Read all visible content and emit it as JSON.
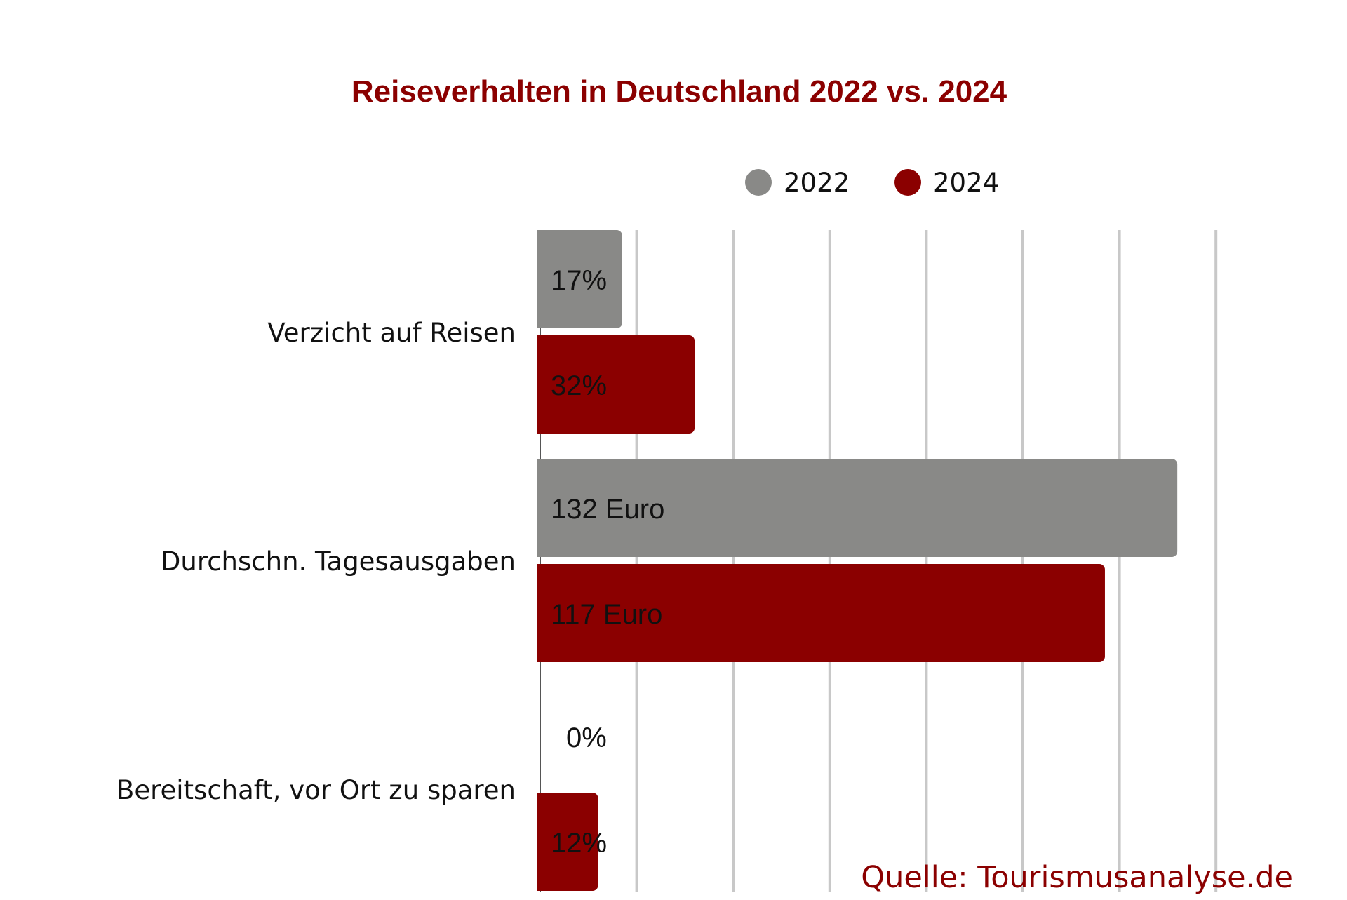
{
  "chart_data": {
    "type": "bar",
    "orientation": "horizontal",
    "title": "Reiseverhalten in Deutschland 2022 vs. 2024",
    "categories": [
      "Verzicht auf Reisen",
      "Durchschn. Tagesausgaben",
      "Bereitschaft, vor Ort zu sparen"
    ],
    "series": [
      {
        "name": "2022",
        "color": "#898987",
        "values": [
          17,
          132,
          0
        ],
        "labels": [
          "17%",
          "132 Euro",
          "0%"
        ]
      },
      {
        "name": "2024",
        "color": "#8b0000",
        "values": [
          32,
          117,
          12
        ],
        "labels": [
          "32%",
          "117 Euro",
          "12%"
        ]
      }
    ],
    "xlim": [
      0,
      140
    ],
    "grid_step": 20,
    "grid": true,
    "legend_position": "top",
    "source": "Quelle: Tourismusanalyse.de"
  },
  "colors": {
    "title": "#8b0000",
    "grid": "#c8c8c8",
    "axis": "#555555",
    "text": "#111111",
    "source": "#8b0000"
  }
}
